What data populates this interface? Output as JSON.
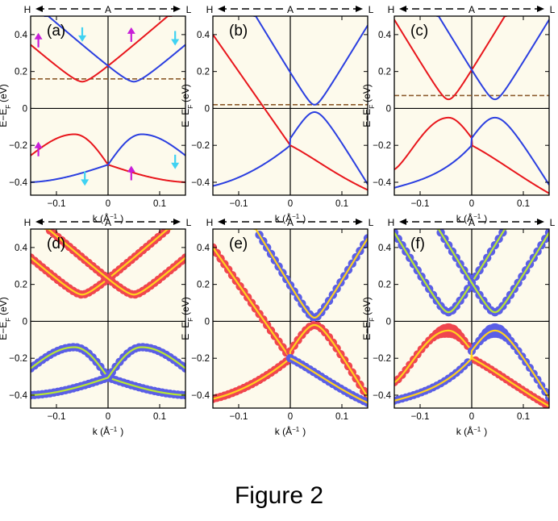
{
  "figure_caption": "Figure 2",
  "axis_common": {
    "ylabel": "E−E",
    "ylabel_sub": "F",
    "ylabel_unit": "(eV)",
    "xlabel": "k (Å",
    "xlabel_sup": "−1",
    "xlabel_close": ")",
    "xlim": [
      -0.15,
      0.15
    ],
    "ylim": [
      -0.47,
      0.5
    ],
    "xticks": [
      -0.1,
      0,
      0.1
    ],
    "xtick_labels": [
      "−0.1",
      "0",
      "0.1"
    ],
    "yticks": [
      -0.4,
      -0.2,
      0,
      0.2,
      0.4
    ],
    "ytick_labels": [
      "−0.4",
      "−0.2",
      "0",
      "0.2",
      "0.4"
    ],
    "direction_labels": {
      "left": "H",
      "center": "A",
      "right": "L"
    }
  },
  "colors": {
    "red": "#e8161c",
    "blue": "#2b3fe0",
    "dash": "#8b5a2b",
    "panel_bg": "#fdfaec",
    "red_dot": "#f0454e",
    "blue_dot": "#5a5ee6",
    "core_yellow": "#ffd21f",
    "core_green": "#b8e832",
    "arrow_up": "#c81fd8",
    "arrow_down": "#3fd2f2"
  },
  "chart_data": [
    {
      "panel": "(a)",
      "type": "line",
      "fermi_dash": 0.16,
      "series": [
        {
          "name": "cond-red",
          "color": "red",
          "params": {
            "shape": "cond",
            "center": -0.05,
            "curv": 0.18,
            "ymin": 0.145,
            "ycross": 0.255,
            "cross_k": 0.0
          }
        },
        {
          "name": "cond-blue",
          "color": "blue",
          "params": {
            "shape": "cond",
            "center": 0.05,
            "curv": 0.18,
            "ymin": 0.145,
            "ycross": 0.255,
            "cross_k": 0.0
          }
        },
        {
          "name": "val-red",
          "color": "red",
          "params": {
            "shape": "val",
            "peak_k": -0.065,
            "peak": -0.14,
            "ycross": -0.305,
            "left_end": -0.25,
            "right_end": -0.38,
            "hl": 0.035,
            "hr": 0.06,
            "cross_k": 0.0
          }
        },
        {
          "name": "val-blue",
          "color": "blue",
          "params": {
            "shape": "val",
            "peak_k": 0.065,
            "peak": -0.14,
            "ycross": -0.305,
            "left_end": -0.38,
            "right_end": -0.25,
            "hl": 0.06,
            "hr": 0.035,
            "cross_k": 0.0
          }
        }
      ],
      "arrows": [
        {
          "k": -0.135,
          "e": 0.37,
          "dir": "up"
        },
        {
          "k": -0.05,
          "e": 0.4,
          "dir": "down"
        },
        {
          "k": 0.045,
          "e": 0.4,
          "dir": "up"
        },
        {
          "k": 0.13,
          "e": 0.38,
          "dir": "down"
        },
        {
          "k": -0.135,
          "e": -0.22,
          "dir": "up"
        },
        {
          "k": -0.045,
          "e": -0.38,
          "dir": "down"
        },
        {
          "k": 0.045,
          "e": -0.35,
          "dir": "up"
        },
        {
          "k": 0.13,
          "e": -0.29,
          "dir": "down"
        }
      ]
    },
    {
      "panel": "(b)",
      "type": "line",
      "fermi_dash": 0.02,
      "series": [
        {
          "name": "dirac-1",
          "color": "red",
          "params": {
            "shape": "linear",
            "k0": -0.05,
            "e0": 0.0,
            "slope": 4.8
          }
        },
        {
          "name": "cond-blue",
          "color": "blue",
          "params": {
            "shape": "v",
            "k0": 0.048,
            "e0": 0.02,
            "slope": 4.8,
            "round": 0.01,
            "ext_k": 0.0
          }
        },
        {
          "name": "val-blue",
          "color": "blue",
          "params": {
            "shape": "peak",
            "k0": 0.048,
            "e0": -0.02,
            "slope": 4.8,
            "round": 0.025,
            "ext_k": 0.0,
            "left_k": -0.15,
            "left_e": -0.42
          }
        },
        {
          "name": "val-red-tail",
          "color": "red",
          "params": {
            "shape": "tail",
            "from_k": 0.0,
            "from_e": -0.2,
            "to_k": 0.15,
            "to_e": -0.45
          }
        }
      ]
    },
    {
      "panel": "(c)",
      "type": "line",
      "fermi_dash": 0.07,
      "series": [
        {
          "name": "cond-red",
          "color": "red",
          "params": {
            "shape": "v",
            "k0": -0.045,
            "e0": 0.05,
            "slope": 4.8,
            "round": 0.012,
            "ext_k": 0.0
          }
        },
        {
          "name": "cond-blue",
          "color": "blue",
          "params": {
            "shape": "v",
            "k0": 0.045,
            "e0": 0.05,
            "slope": 4.8,
            "round": 0.012,
            "ext_k": 0.0
          }
        },
        {
          "name": "val-red",
          "color": "red",
          "params": {
            "shape": "peak",
            "k0": -0.045,
            "e0": -0.05,
            "slope": 4.8,
            "round": 0.03,
            "ext_k": 0.0,
            "left_k": -0.15,
            "left_e": -0.33
          }
        },
        {
          "name": "val-blue",
          "color": "blue",
          "params": {
            "shape": "peak",
            "k0": 0.045,
            "e0": -0.05,
            "slope": 4.8,
            "round": 0.03,
            "ext_k": 0.0,
            "left_k": -0.15,
            "left_e": -0.43
          }
        }
      ]
    },
    {
      "panel": "(d)",
      "type": "scatter",
      "reuse": "(a)",
      "series": [
        {
          "name": "cond-red",
          "dot": "red_dot",
          "core": "core_yellow"
        },
        {
          "name": "cond-blue",
          "dot": "red_dot",
          "core": "core_yellow"
        },
        {
          "name": "val-red",
          "dot": "blue_dot",
          "core": "core_green"
        },
        {
          "name": "val-blue",
          "dot": "blue_dot",
          "core": "core_green"
        }
      ]
    },
    {
      "panel": "(e)",
      "type": "scatter",
      "reuse": "(b)",
      "series": [
        {
          "name": "dirac-1",
          "dot": "red_dot",
          "core": "core_yellow"
        },
        {
          "name": "cond-blue",
          "dot": "blue_dot",
          "core": "core_yellow"
        },
        {
          "name": "val-blue",
          "dot": "red_dot",
          "core": "core_yellow"
        },
        {
          "name": "val-red-tail",
          "dot": "blue_dot",
          "core": "core_yellow"
        }
      ]
    },
    {
      "panel": "(f)",
      "type": "scatter",
      "reuse": "(c)",
      "series": [
        {
          "name": "cond-red",
          "dot": "blue_dot",
          "core": "core_green"
        },
        {
          "name": "cond-blue",
          "dot": "blue_dot",
          "core": "core_green"
        },
        {
          "name": "val-red",
          "dot": "red_dot",
          "core": "core_yellow"
        },
        {
          "name": "val-blue",
          "dot": "blue_dot",
          "core": "core_yellow"
        }
      ]
    }
  ]
}
